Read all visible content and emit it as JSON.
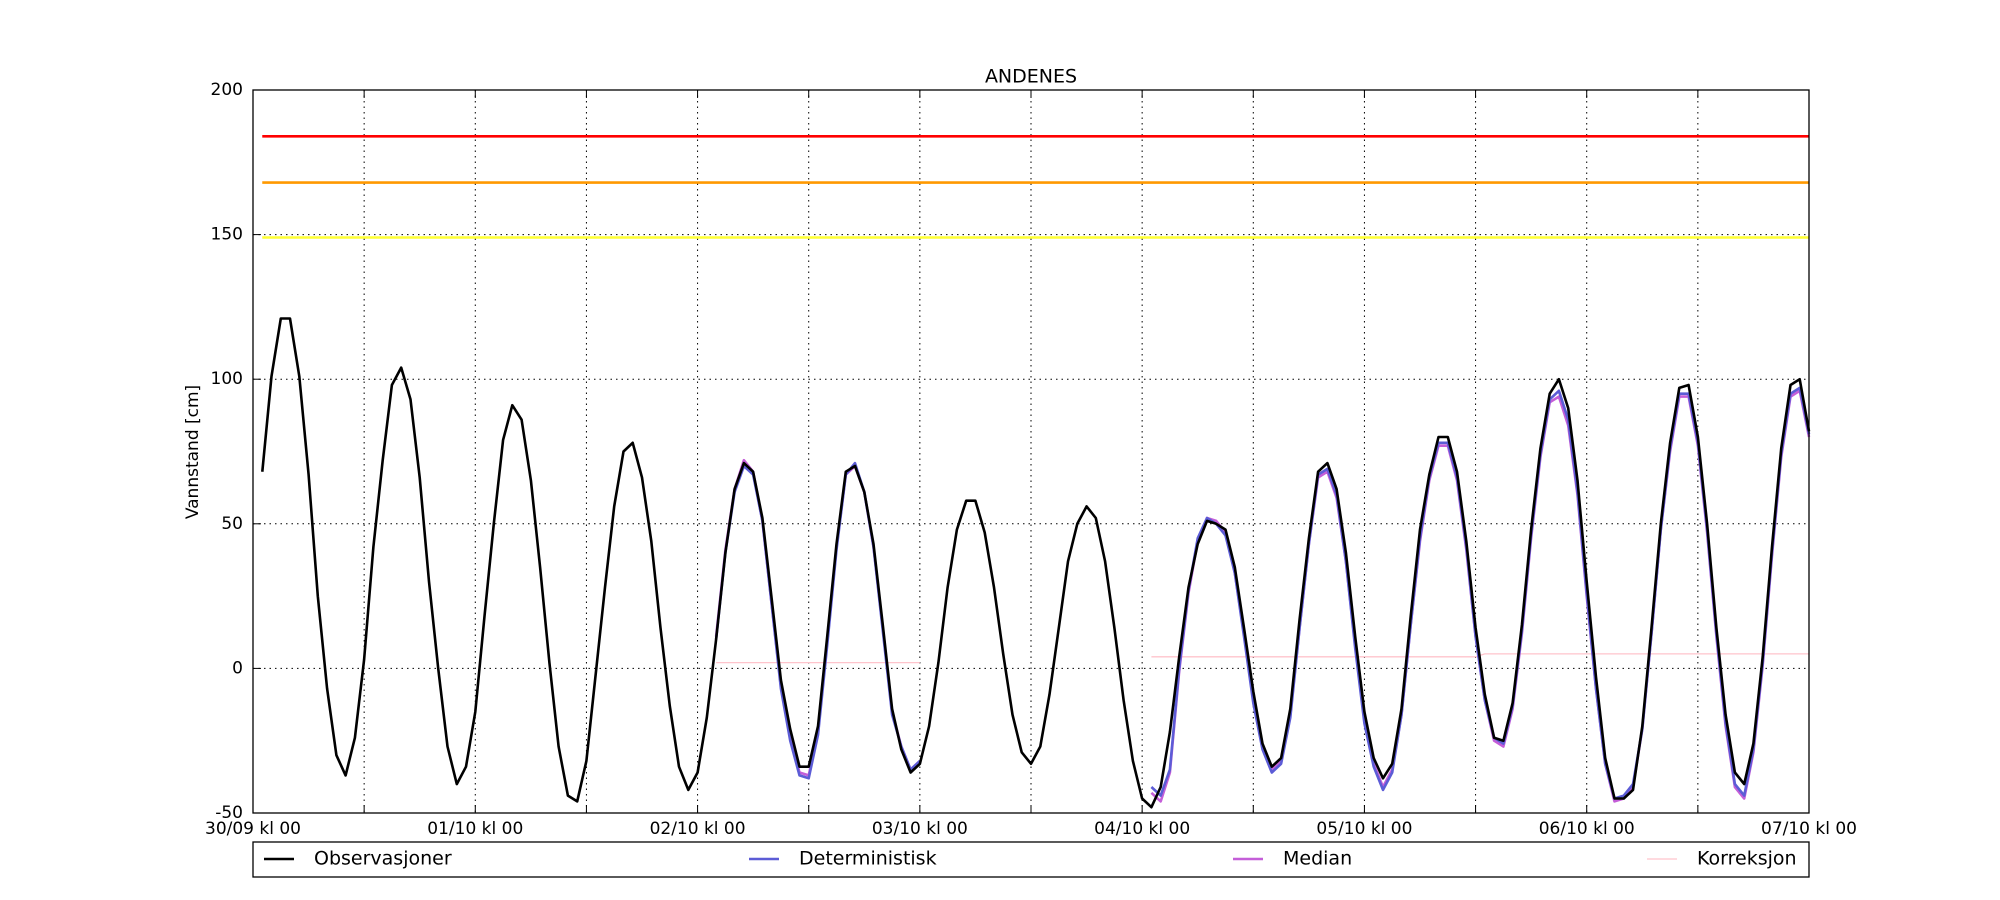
{
  "chart_data": {
    "type": "line",
    "title": "ANDENES",
    "y_label": "Vannstand [cm]",
    "ylim": [
      -50,
      200
    ],
    "yticks": [
      -50,
      0,
      50,
      100,
      150,
      200
    ],
    "xlim": [
      0,
      168
    ],
    "xticks": [
      {
        "value": 0,
        "label": "30/09 kl 00"
      },
      {
        "value": 12,
        "label": null
      },
      {
        "value": 24,
        "label": "01/10 kl 00"
      },
      {
        "value": 36,
        "label": null
      },
      {
        "value": 48,
        "label": "02/10 kl 00"
      },
      {
        "value": 60,
        "label": null
      },
      {
        "value": 72,
        "label": "03/10 kl 00"
      },
      {
        "value": 84,
        "label": null
      },
      {
        "value": 96,
        "label": "04/10 kl 00"
      },
      {
        "value": 108,
        "label": null
      },
      {
        "value": 120,
        "label": "05/10 kl 00"
      },
      {
        "value": 132,
        "label": null
      },
      {
        "value": 144,
        "label": "06/10 kl 00"
      },
      {
        "value": 156,
        "label": null
      },
      {
        "value": 168,
        "label": "07/10 kl 00"
      }
    ],
    "grid": true,
    "legend": "bottom",
    "reference_lines": [
      {
        "value": 184,
        "color": "#ff0000"
      },
      {
        "value": 168,
        "color": "#ff9900"
      },
      {
        "value": 149,
        "color": "#ffff33"
      }
    ],
    "series": [
      {
        "name": "Observasjoner",
        "color": "#000000",
        "values": [
          68,
          101,
          121,
          121,
          101,
          67,
          25,
          -7,
          -30,
          -37,
          -24,
          3,
          42,
          72,
          98,
          104,
          93,
          66,
          30,
          0,
          -27,
          -40,
          -34,
          -15,
          18,
          50,
          79,
          91,
          86,
          65,
          35,
          2,
          -27,
          -44,
          -46,
          -32,
          -2,
          28,
          56,
          75,
          78,
          66,
          44,
          14,
          -13,
          -34,
          -42,
          -36,
          -17,
          10,
          40,
          62,
          71,
          68,
          52,
          24,
          -4,
          -21,
          -34,
          -34,
          -20,
          11,
          43,
          68,
          70,
          61,
          43,
          15,
          -14,
          -28,
          -36,
          -33,
          -20,
          2,
          28,
          48,
          58,
          58,
          47,
          28,
          5,
          -16,
          -29,
          -33,
          -27,
          -9,
          14,
          37,
          50,
          56,
          52,
          37,
          14,
          -11,
          -32,
          -45,
          -48,
          -41,
          -22,
          4,
          28,
          43,
          51,
          50,
          48,
          35,
          14,
          -8,
          -26,
          -34,
          -31,
          -14,
          17,
          45,
          68,
          71,
          62,
          40,
          11,
          -15,
          -31,
          -38,
          -33,
          -14,
          18,
          48,
          67,
          80,
          80,
          68,
          44,
          14,
          -9,
          -24,
          -25,
          -12,
          15,
          48,
          76,
          95,
          100,
          90,
          65,
          30,
          -3,
          -31,
          -45,
          -45,
          -42,
          -20,
          14,
          50,
          78,
          97,
          98,
          80,
          50,
          14,
          -16,
          -36,
          -40,
          -26,
          4,
          42,
          76,
          98,
          100,
          82
        ]
      },
      {
        "name": "Deterministisk",
        "color": "#5c5cd6",
        "values": [
          null,
          null,
          null,
          null,
          null,
          null,
          null,
          null,
          null,
          null,
          null,
          null,
          null,
          null,
          null,
          null,
          null,
          null,
          null,
          null,
          null,
          null,
          null,
          null,
          null,
          null,
          null,
          null,
          null,
          null,
          null,
          null,
          null,
          null,
          null,
          null,
          null,
          null,
          null,
          null,
          null,
          null,
          null,
          null,
          null,
          null,
          null,
          null,
          null,
          10,
          40,
          61,
          70,
          67,
          51,
          22,
          -7,
          -25,
          -37,
          -38,
          -23,
          8,
          41,
          67,
          71,
          61,
          42,
          13,
          -16,
          -27,
          -35,
          -32,
          null,
          null,
          null,
          null,
          null,
          null,
          null,
          null,
          null,
          null,
          null,
          null,
          null,
          null,
          null,
          null,
          null,
          null,
          null,
          null,
          null,
          null,
          null,
          null,
          -41,
          -44,
          -35,
          0,
          27,
          45,
          52,
          50,
          46,
          33,
          11,
          -12,
          -28,
          -36,
          -33,
          -17,
          14,
          43,
          67,
          69,
          60,
          37,
          7,
          -19,
          -34,
          -42,
          -36,
          -16,
          15,
          45,
          66,
          78,
          78,
          66,
          42,
          11,
          -11,
          -24,
          -26,
          -13,
          13,
          46,
          74,
          93,
          96,
          86,
          61,
          26,
          -7,
          -33,
          -45,
          -44,
          -40,
          -21,
          12,
          48,
          76,
          95,
          95,
          78,
          48,
          12,
          -19,
          -40,
          -44,
          -28,
          2,
          40,
          74,
          95,
          97,
          81
        ]
      },
      {
        "name": "Median",
        "color": "#c45ed8",
        "values": [
          null,
          null,
          null,
          null,
          null,
          null,
          null,
          null,
          null,
          null,
          null,
          null,
          null,
          null,
          null,
          null,
          null,
          null,
          null,
          null,
          null,
          null,
          null,
          null,
          null,
          null,
          null,
          null,
          null,
          null,
          null,
          null,
          null,
          null,
          null,
          null,
          null,
          null,
          null,
          null,
          null,
          null,
          null,
          null,
          null,
          null,
          null,
          null,
          null,
          11,
          41,
          62,
          72,
          68,
          51,
          22,
          -6,
          -24,
          -36,
          -37,
          -22,
          9,
          42,
          67,
          70,
          61,
          42,
          14,
          -15,
          -27,
          -35,
          -32,
          null,
          null,
          null,
          null,
          null,
          null,
          null,
          null,
          null,
          null,
          null,
          null,
          null,
          null,
          null,
          null,
          null,
          null,
          null,
          null,
          null,
          null,
          null,
          null,
          -43,
          -46,
          -36,
          -1,
          26,
          44,
          52,
          51,
          47,
          33,
          12,
          -11,
          -27,
          -35,
          -32,
          -16,
          14,
          43,
          66,
          68,
          59,
          37,
          8,
          -18,
          -33,
          -41,
          -35,
          -16,
          15,
          44,
          65,
          77,
          77,
          65,
          41,
          11,
          -11,
          -25,
          -27,
          -14,
          12,
          45,
          73,
          92,
          94,
          84,
          60,
          25,
          -7,
          -33,
          -46,
          -45,
          -41,
          -21,
          12,
          48,
          75,
          94,
          94,
          77,
          47,
          11,
          -20,
          -41,
          -45,
          -29,
          1,
          39,
          73,
          94,
          96,
          80
        ]
      },
      {
        "name": "Korreksjon",
        "color": "#ffc4cc",
        "values": [
          null,
          null,
          null,
          null,
          null,
          null,
          null,
          null,
          null,
          null,
          null,
          null,
          null,
          null,
          null,
          null,
          null,
          null,
          null,
          null,
          null,
          null,
          null,
          null,
          null,
          null,
          null,
          null,
          null,
          null,
          null,
          null,
          null,
          null,
          null,
          null,
          null,
          null,
          null,
          null,
          null,
          null,
          null,
          null,
          null,
          null,
          null,
          null,
          null,
          2,
          2,
          2,
          2,
          2,
          2,
          2,
          2,
          2,
          2,
          2,
          2,
          2,
          2,
          2,
          2,
          2,
          2,
          2,
          2,
          2,
          2,
          2,
          null,
          null,
          null,
          null,
          null,
          null,
          null,
          null,
          null,
          null,
          null,
          null,
          null,
          null,
          null,
          null,
          null,
          null,
          null,
          null,
          null,
          null,
          null,
          null,
          4,
          4,
          4,
          4,
          4,
          4,
          4,
          4,
          4,
          4,
          4,
          4,
          4,
          4,
          4,
          4,
          4,
          4,
          4,
          4,
          4,
          4,
          4,
          4,
          4,
          4,
          4,
          4,
          4,
          4,
          4,
          4,
          4,
          4,
          4,
          4,
          5,
          5,
          5,
          5,
          5,
          5,
          5,
          5,
          5,
          5,
          5,
          5,
          5,
          5,
          5,
          5,
          5,
          5,
          5,
          5,
          5,
          5,
          5,
          5,
          5,
          5,
          5,
          5,
          5,
          5,
          5,
          5,
          5,
          5,
          5,
          5
        ]
      }
    ]
  }
}
